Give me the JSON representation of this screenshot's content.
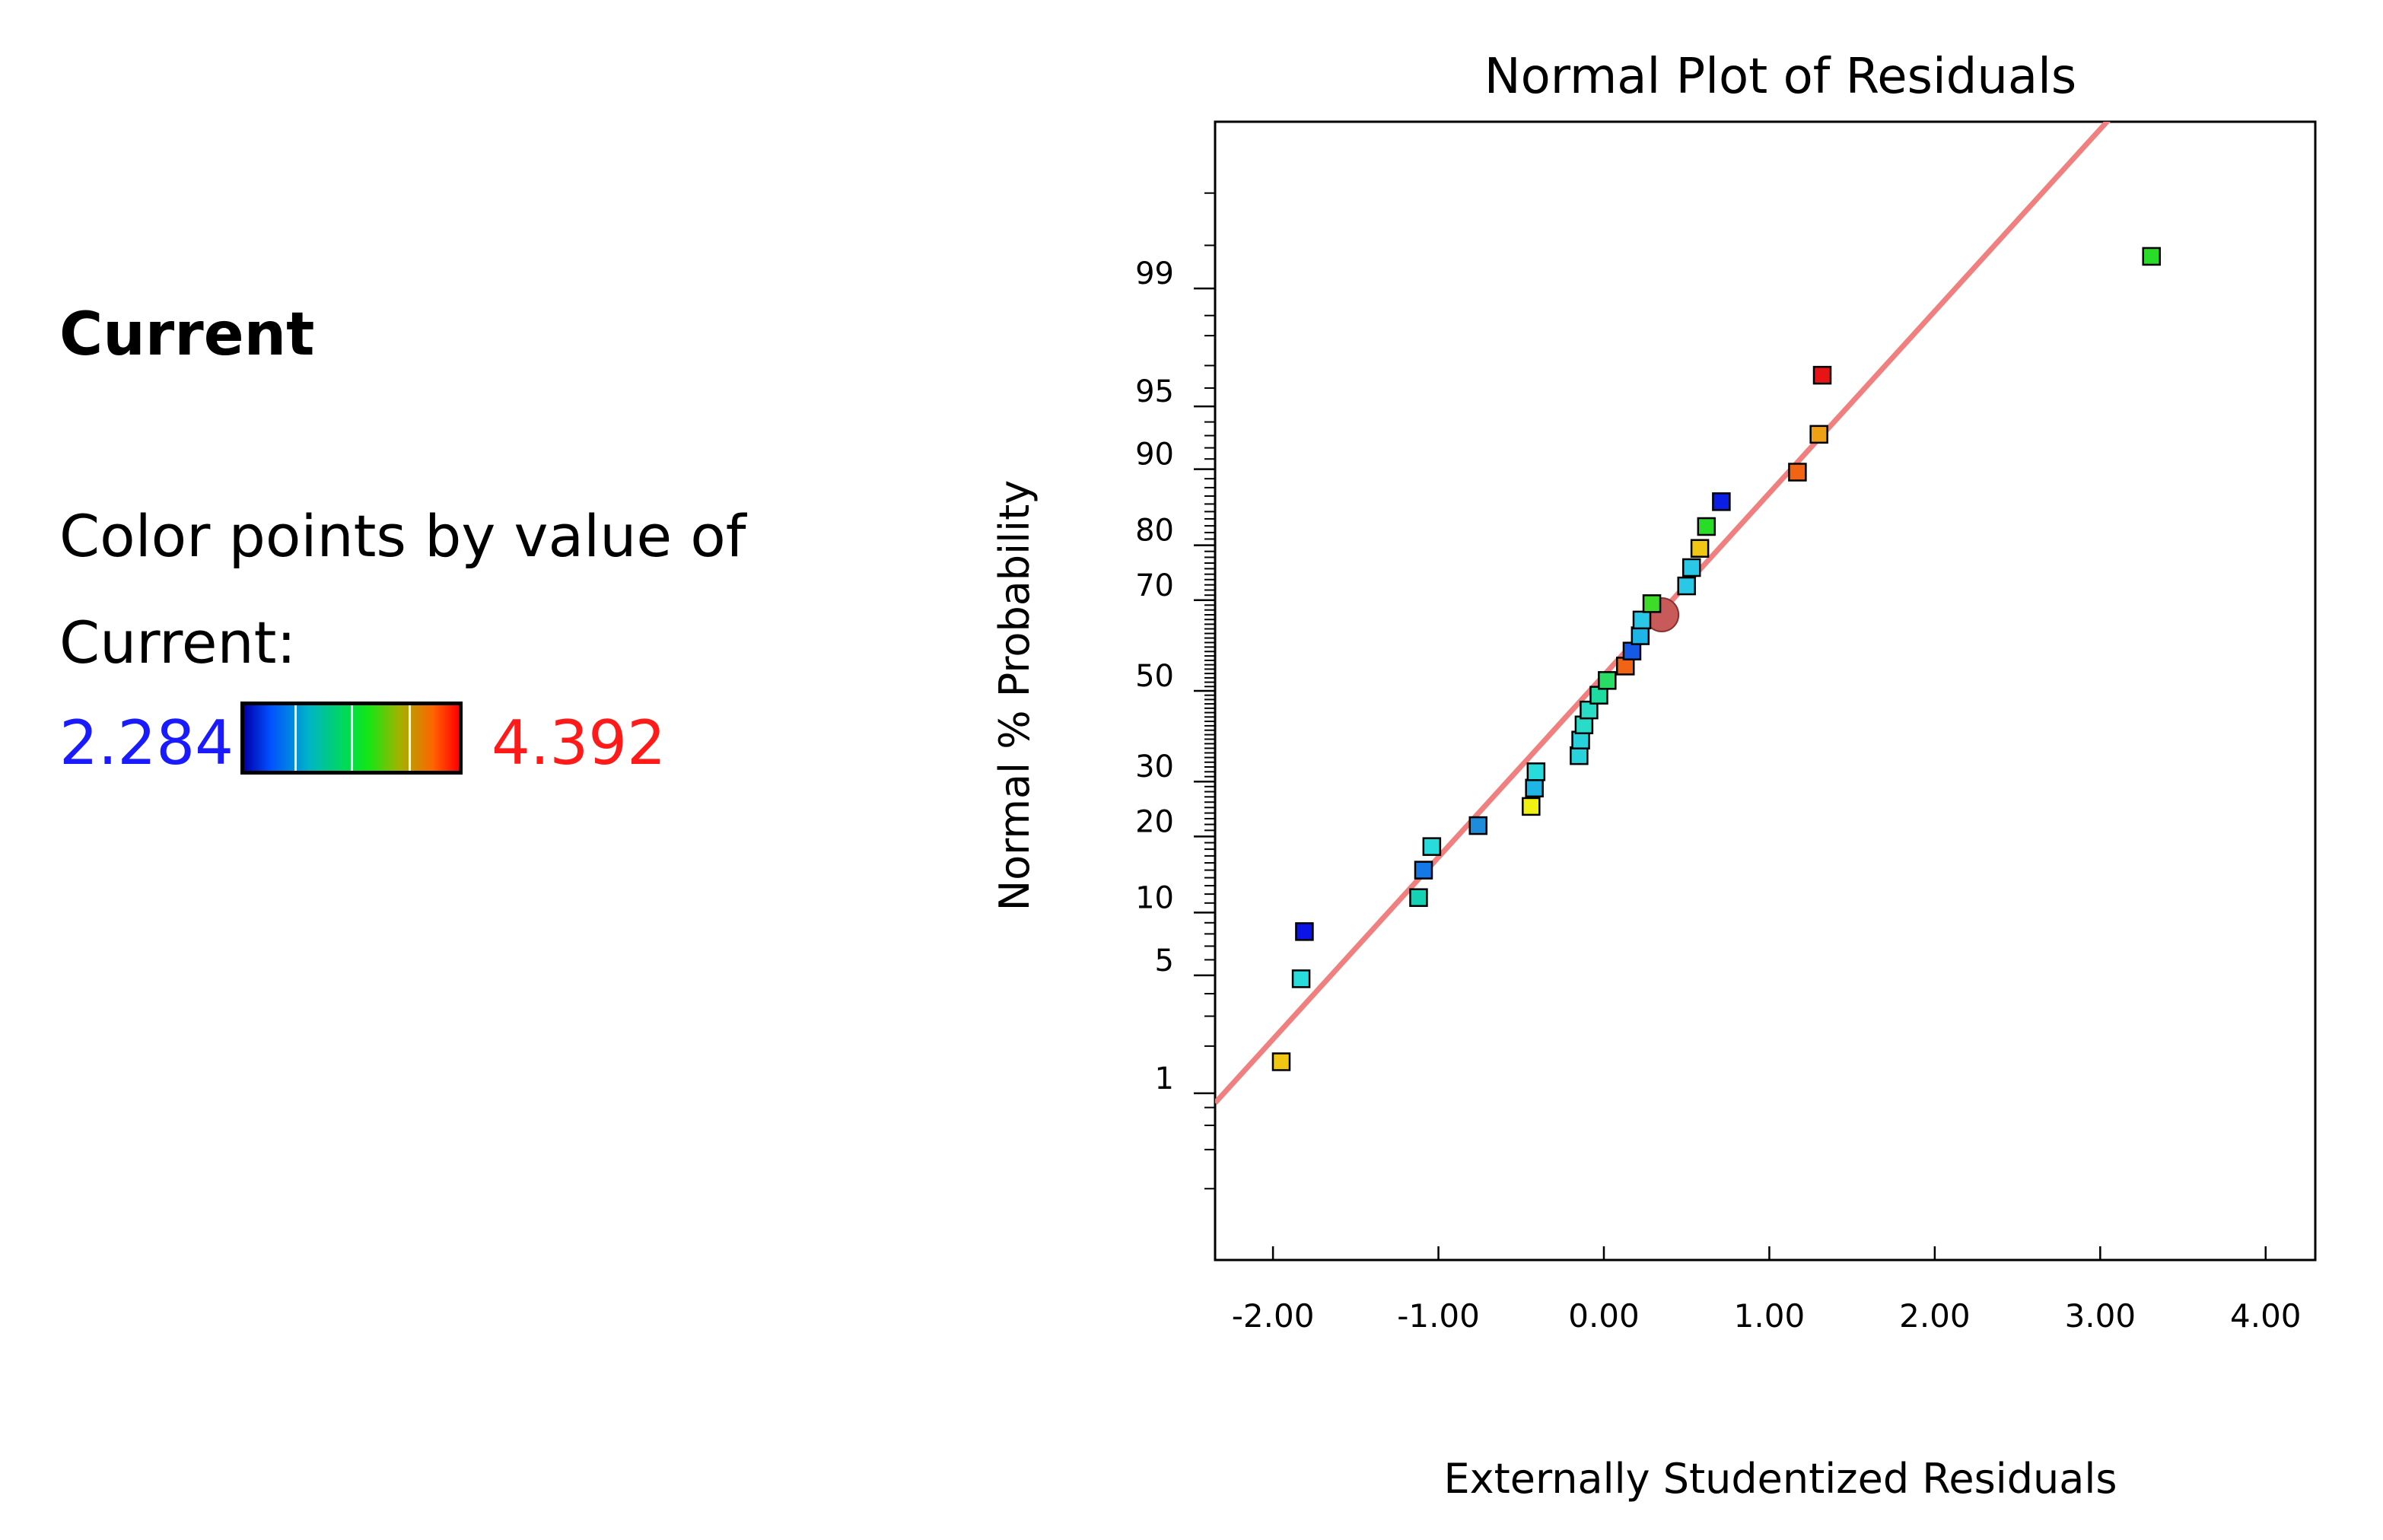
{
  "legend": {
    "heading": "Current",
    "caption_line1": "Color points by value of",
    "caption_line2": "Current:",
    "min_label": "2.284",
    "max_label": "4.392",
    "min_color": "#1a1aff",
    "max_color": "#ff1a1a"
  },
  "chart_data": {
    "type": "scatter",
    "title": "Normal Plot of Residuals",
    "xlabel": "Externally Studentized Residuals",
    "ylabel": "Normal % Probability",
    "xlim": [
      -2.35,
      4.3
    ],
    "ylim_probability": [
      0.05,
      99.95
    ],
    "x_ticks": [
      -2.0,
      -1.0,
      0.0,
      1.0,
      2.0,
      3.0,
      4.0
    ],
    "x_tick_labels": [
      "-2.00",
      "-1.00",
      "0.00",
      "1.00",
      "2.00",
      "3.00",
      "4.00"
    ],
    "y_ticks": [
      1,
      5,
      10,
      20,
      30,
      50,
      70,
      80,
      90,
      95,
      99
    ],
    "y_tick_labels": [
      "1",
      "5",
      "10",
      "20",
      "30",
      "50",
      "70",
      "80",
      "90",
      "95",
      "99"
    ],
    "line_color": "#f08080",
    "reference_line": {
      "x": [
        -2.35,
        3.1
      ],
      "prob": [
        0.86,
        99.96
      ]
    },
    "points": [
      {
        "x": -1.95,
        "prob": 1.6,
        "color": "#f0c814"
      },
      {
        "x": -1.83,
        "prob": 4.8,
        "color": "#28dcdc"
      },
      {
        "x": -1.81,
        "prob": 8.2,
        "color": "#0a14e6"
      },
      {
        "x": -1.12,
        "prob": 11.6,
        "color": "#14d2b4"
      },
      {
        "x": -1.09,
        "prob": 15.0,
        "color": "#1478e6"
      },
      {
        "x": -1.04,
        "prob": 18.4,
        "color": "#28dcdc"
      },
      {
        "x": -0.76,
        "prob": 21.8,
        "color": "#1e8cdc"
      },
      {
        "x": -0.44,
        "prob": 25.2,
        "color": "#f0f014"
      },
      {
        "x": -0.42,
        "prob": 28.7,
        "color": "#1eb4e6"
      },
      {
        "x": -0.41,
        "prob": 32.0,
        "color": "#28dcdc"
      },
      {
        "x": -0.15,
        "prob": 35.4,
        "color": "#28d2dc"
      },
      {
        "x": -0.14,
        "prob": 38.8,
        "color": "#28d2dc"
      },
      {
        "x": -0.12,
        "prob": 42.2,
        "color": "#28dcc8"
      },
      {
        "x": -0.09,
        "prob": 45.6,
        "color": "#28dcc8"
      },
      {
        "x": -0.03,
        "prob": 49.0,
        "color": "#1edca0"
      },
      {
        "x": 0.02,
        "prob": 52.4,
        "color": "#28dc64"
      },
      {
        "x": 0.13,
        "prob": 55.7,
        "color": "#f06414"
      },
      {
        "x": 0.17,
        "prob": 59.1,
        "color": "#145ae6"
      },
      {
        "x": 0.22,
        "prob": 62.5,
        "color": "#1eb4e6"
      },
      {
        "x": 0.23,
        "prob": 65.9,
        "color": "#28c8e6"
      },
      {
        "x": 0.29,
        "prob": 69.3,
        "color": "#3cdc28"
      },
      {
        "x": 0.5,
        "prob": 72.8,
        "color": "#28c8e6"
      },
      {
        "x": 0.53,
        "prob": 76.2,
        "color": "#28c8e6"
      },
      {
        "x": 0.58,
        "prob": 79.5,
        "color": "#f0c814"
      },
      {
        "x": 0.62,
        "prob": 82.9,
        "color": "#28dc28"
      },
      {
        "x": 0.71,
        "prob": 86.3,
        "color": "#0a1ee6"
      },
      {
        "x": 1.17,
        "prob": 89.7,
        "color": "#f06414"
      },
      {
        "x": 1.3,
        "prob": 93.1,
        "color": "#f0a014"
      },
      {
        "x": 1.32,
        "prob": 96.6,
        "color": "#e61414"
      },
      {
        "x": 3.31,
        "prob": 99.4,
        "color": "#28dc28"
      }
    ],
    "highlight_point": {
      "x": 0.35,
      "prob": 67.0,
      "color": "#c85a5a"
    }
  }
}
